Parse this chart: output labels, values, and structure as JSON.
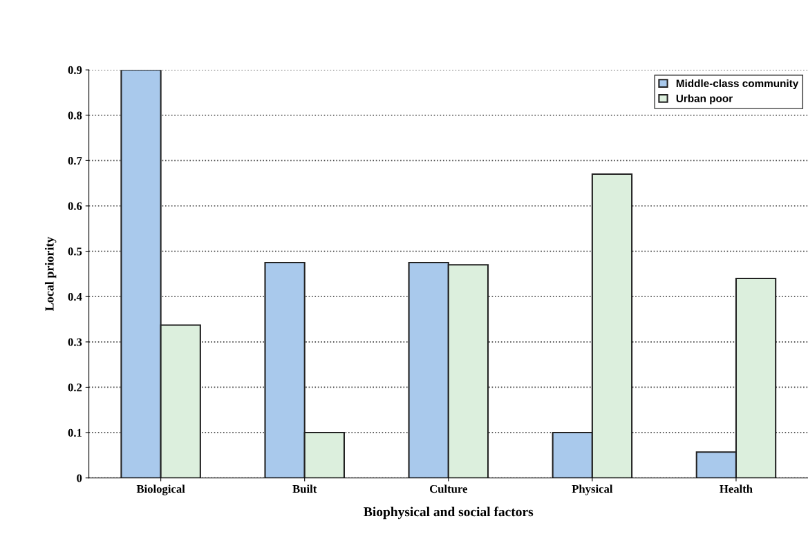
{
  "chart_data": {
    "type": "bar",
    "xlabel": "Biophysical and social factors",
    "ylabel": "Local priority",
    "categories": [
      "Biological",
      "Built",
      "Culture",
      "Physical",
      "Health"
    ],
    "series": [
      {
        "name": "Middle-class community",
        "color": "#a9c9ec",
        "values": [
          0.9,
          0.475,
          0.475,
          0.1,
          0.057
        ]
      },
      {
        "name": "Urban poor",
        "color": "#dcefdd",
        "values": [
          0.337,
          0.1,
          0.47,
          0.67,
          0.44
        ]
      }
    ],
    "ylim": [
      0,
      0.9
    ],
    "yticks": [
      {
        "value": 0,
        "label": "0"
      },
      0.1,
      0.2,
      0.3,
      0.4,
      0.5,
      0.6,
      0.7,
      0.8,
      0.9
    ],
    "grid": "y",
    "legend": "top right"
  }
}
